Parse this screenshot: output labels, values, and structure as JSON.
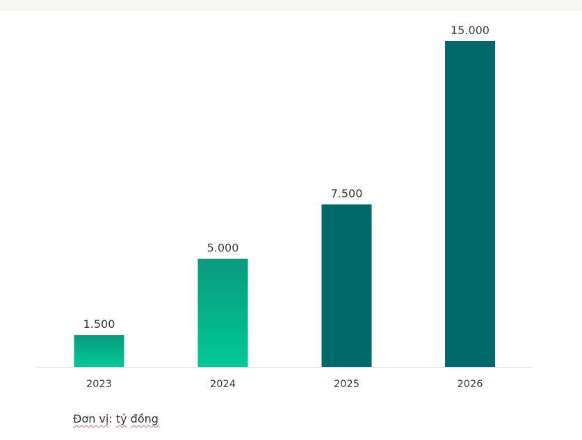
{
  "chart_data": {
    "type": "bar",
    "categories": [
      "2023",
      "2024",
      "2025",
      "2026"
    ],
    "values": [
      1500,
      5000,
      7500,
      15000
    ],
    "value_labels": [
      "1.500",
      "5.000",
      "7.500",
      "15.000"
    ],
    "title": "",
    "xlabel": "",
    "ylabel": "",
    "ylim": [
      0,
      15000
    ],
    "grid": false,
    "legend": "none",
    "colors": {
      "bar_gradient_top": "#0a9a7e",
      "bar_gradient_bottom": "#00c996",
      "bar_dark": "#006a6a",
      "baseline": "#dddddd"
    }
  },
  "note": {
    "prefix": "Đơn vị",
    "colon": ": ",
    "word1": "tỷ",
    "space": " ",
    "word2": "đồng"
  }
}
